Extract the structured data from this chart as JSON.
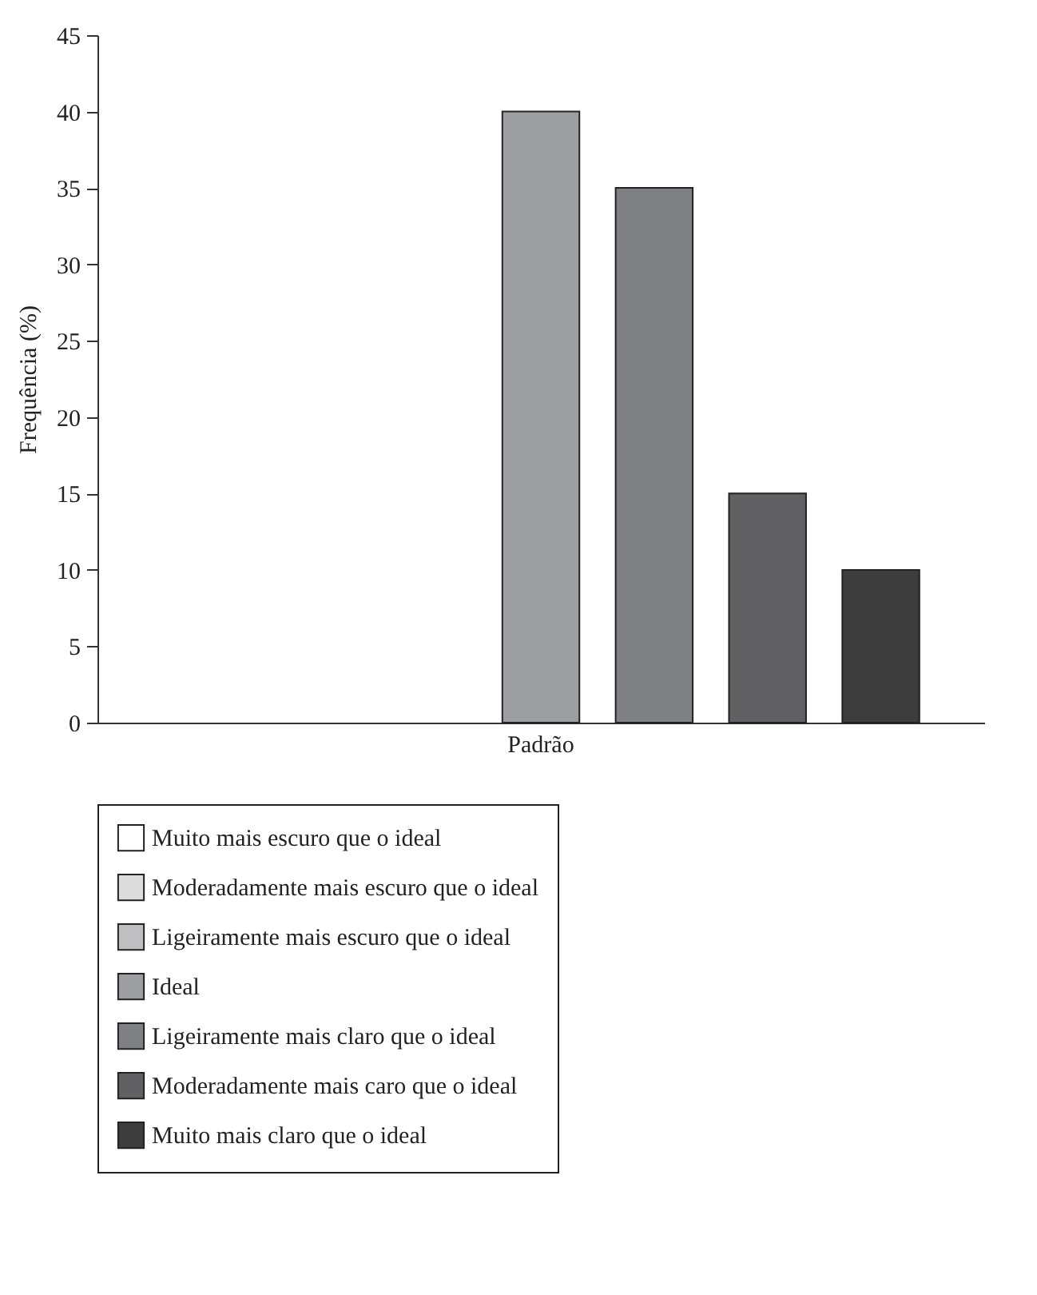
{
  "chart_data": {
    "type": "bar",
    "ylabel": "Frequência (%)",
    "categories": [
      "Padrão"
    ],
    "series": [
      {
        "name": "Muito mais escuro que o ideal",
        "color": "#ffffff",
        "values": [
          0
        ]
      },
      {
        "name": "Moderadamente mais escuro que o ideal",
        "color": "#dcdcdc",
        "values": [
          0
        ]
      },
      {
        "name": "Ligeiramente mais escuro que o ideal",
        "color": "#c0c0c2",
        "values": [
          0
        ]
      },
      {
        "name": "Ideal",
        "color": "#9d9ea2",
        "values": [
          40
        ]
      },
      {
        "name": "Ligeiramente mais claro que o ideal",
        "color": "#7f8084",
        "values": [
          35
        ]
      },
      {
        "name": "Moderadamente mais caro que o ideal",
        "color": "#616163",
        "values": [
          15
        ]
      },
      {
        "name": "Muito mais claro que o ideal",
        "color": "#3d3d3d",
        "values": [
          10
        ]
      }
    ],
    "ylim": [
      0,
      45
    ],
    "yticks": [
      0,
      5,
      10,
      15,
      20,
      25,
      30,
      35,
      40,
      45
    ],
    "grid": false,
    "legend": "bottom"
  }
}
